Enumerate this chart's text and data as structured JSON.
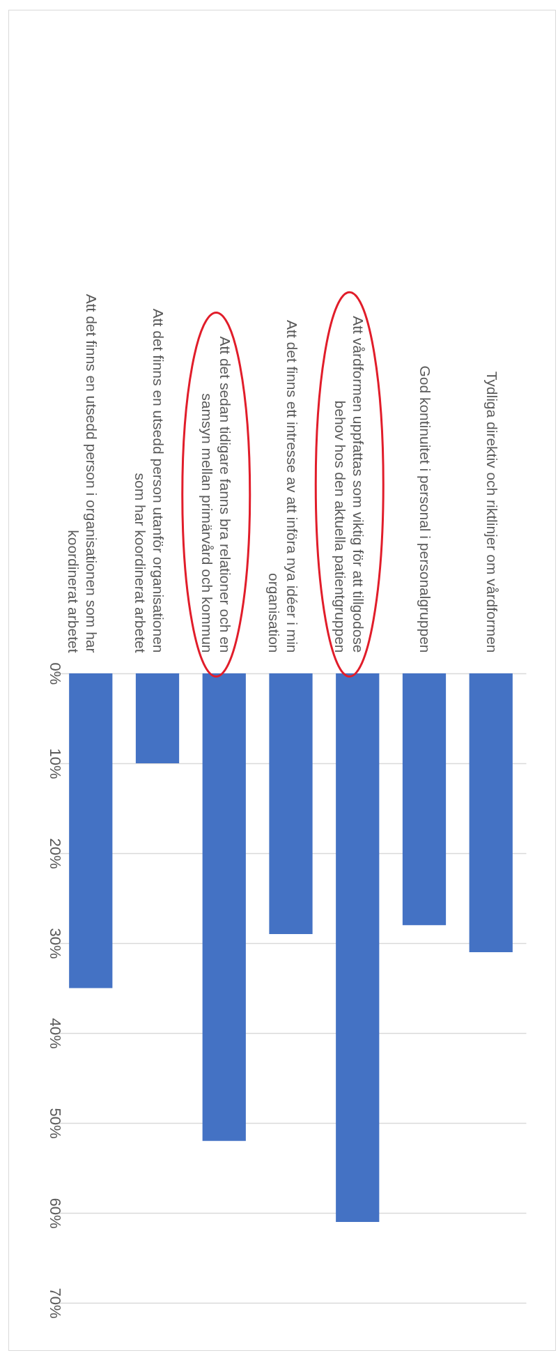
{
  "chart_data": {
    "type": "bar",
    "categories": [
      "Att det finns en utsedd person i organisationen som har koordinerat arbetet",
      "Att det finns en utsedd person utanför organisationen som har koordinerat arbetet",
      "Att det sedan tidigare fanns bra relationer och en samsyn mellan primärvård och kommun",
      "Att det finns ett intresse av att införa nya idéer i min organisation",
      "Att vårdformen uppfattas som viktig för att tillgodose behov hos den aktuella patientgruppen",
      "God kontinuitet i personal i personalgruppen",
      "Tydliga direktiv och riktlinjer om vårdformen"
    ],
    "values": [
      35,
      10,
      52,
      29,
      61,
      28,
      31
    ],
    "color": "#4472c4",
    "ylim": [
      70,
      0
    ],
    "yticks": [
      {
        "value": 0,
        "label": "0%"
      },
      {
        "value": 10,
        "label": "10%"
      },
      {
        "value": 20,
        "label": "20%"
      },
      {
        "value": 30,
        "label": "30%"
      },
      {
        "value": 40,
        "label": "40%"
      },
      {
        "value": 50,
        "label": "50%"
      },
      {
        "value": 60,
        "label": "60%"
      },
      {
        "value": 70,
        "label": "70%"
      }
    ],
    "grid": "y"
  }
}
